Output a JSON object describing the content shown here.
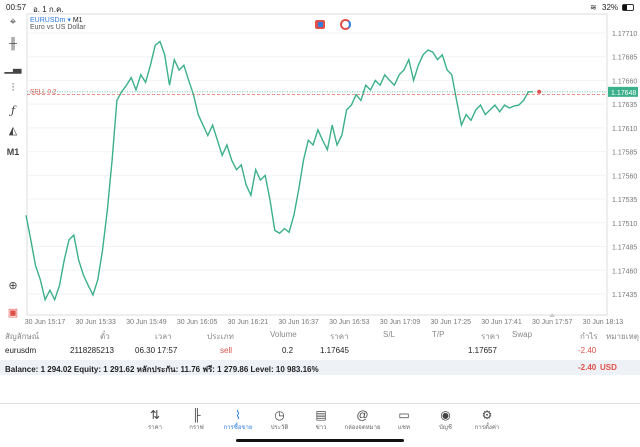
{
  "status": {
    "time": "00:57",
    "date": "อ. 1 ก.ค.",
    "battery": "32%"
  },
  "symbol": {
    "name": "EURUSDm",
    "timeframe": "M1",
    "description": "Euro vs US Dollar",
    "tf_button": "M1"
  },
  "order_line": {
    "label": "SELL 0.2",
    "price": 1.17645
  },
  "current_price": {
    "label": "1.17648",
    "value": 1.17648
  },
  "colors": {
    "line": "#3bb08a",
    "sell": "#e0504a",
    "accent": "#2f7de1"
  },
  "chart_data": {
    "type": "line",
    "x_start_minute": -6,
    "x_end_minute": 154,
    "x_note": "minutes after 30 Jun 15:17",
    "y_ticks": [
      "1.17710",
      "1.17685",
      "1.17660",
      "1.17635",
      "1.17610",
      "1.17585",
      "1.17560",
      "1.17535",
      "1.17510",
      "1.17485",
      "1.17460",
      "1.17435"
    ],
    "x_ticks": [
      "30 Jun 15:17",
      "30 Jun 15:33",
      "30 Jun 15:49",
      "30 Jun 16:05",
      "30 Jun 16:21",
      "30 Jun 16:37",
      "30 Jun 16:53",
      "30 Jun 17:09",
      "30 Jun 17:25",
      "30 Jun 17:41",
      "30 Jun 17:57",
      "30 Jun 18:13"
    ],
    "values": [
      1.17518,
      1.17492,
      1.17465,
      1.1745,
      1.17429,
      1.17439,
      1.17429,
      1.17444,
      1.17471,
      1.17492,
      1.17497,
      1.17471,
      1.17455,
      1.17444,
      1.17434,
      1.1745,
      1.17481,
      1.17523,
      1.17576,
      1.17639,
      1.17648,
      1.17655,
      1.17663,
      1.1765,
      1.17666,
      1.17658,
      1.17676,
      1.17697,
      1.17701,
      1.17687,
      1.17655,
      1.17682,
      1.17671,
      1.17676,
      1.1766,
      1.17645,
      1.17624,
      1.17613,
      1.17602,
      1.17613,
      1.17597,
      1.17581,
      1.17592,
      1.17576,
      1.17566,
      1.17571,
      1.1755,
      1.17539,
      1.17566,
      1.17555,
      1.1756,
      1.17534,
      1.17502,
      1.17499,
      1.17504,
      1.175,
      1.17518,
      1.17545,
      1.17576,
      1.17597,
      1.17592,
      1.17608,
      1.17597,
      1.17587,
      1.17613,
      1.17592,
      1.17602,
      1.17629,
      1.17634,
      1.17645,
      1.17639,
      1.17655,
      1.1765,
      1.1766,
      1.17655,
      1.17666,
      1.1766,
      1.17655,
      1.17666,
      1.17671,
      1.17682,
      1.1766,
      1.17676,
      1.17687,
      1.17692,
      1.1769,
      1.17682,
      1.17687,
      1.17671,
      1.17666,
      1.17639,
      1.17613,
      1.17624,
      1.17618,
      1.17629,
      1.17634,
      1.17624,
      1.17629,
      1.17634,
      1.17627,
      1.17634,
      1.17631,
      1.17633,
      1.17634,
      1.17639,
      1.17648,
      1.17648
    ],
    "ylim": [
      1.17415,
      1.1773
    ]
  },
  "table": {
    "headers": [
      "สัญลักษณ์",
      "ตั๋ว",
      "เวลา",
      "ประเภท",
      "Volume",
      "ราคา",
      "S/L",
      "T/P",
      "ราคา",
      "Swap",
      "กำไร",
      "หมายเหตุ"
    ],
    "row": {
      "symbol": "eurusdm",
      "ticket": "2118285213",
      "time": "06.30 17:57",
      "type": "sell",
      "volume": "0.2",
      "open_price": "1.17645",
      "sl": "",
      "tp": "",
      "price": "1.17657",
      "swap": "",
      "profit": "-2.40"
    },
    "balance": "Balance: 1 294.02 Equity: 1 291.62 หลักประกัน: 11.76 ฟรี: 1 279.86 Level: 10 983.16%",
    "total_profit": "-2.40",
    "currency": "USD"
  },
  "nav": [
    {
      "label": "ราคา",
      "icon": "⇅"
    },
    {
      "label": "กราฟ",
      "icon": "╟"
    },
    {
      "label": "การซื้อขาย",
      "icon": "⌇"
    },
    {
      "label": "ประวัติ",
      "icon": "◷"
    },
    {
      "label": "ข่าว",
      "icon": "▤"
    },
    {
      "label": "กล่องจดหมาย",
      "icon": "@"
    },
    {
      "label": "แชท",
      "icon": "▭"
    },
    {
      "label": "บัญชี",
      "icon": "◉"
    },
    {
      "label": "การตั้งค่า",
      "icon": "⚙"
    }
  ]
}
